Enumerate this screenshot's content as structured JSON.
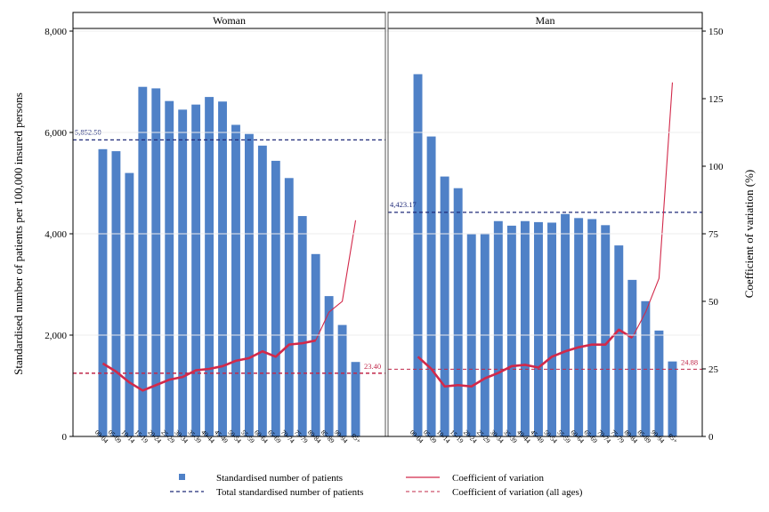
{
  "chart_data": {
    "type": "bar",
    "y_left_label": "Standardised number of patients per 100,000 insured persons",
    "y_right_label": "Coefficient of variation (%)",
    "y_left_lim": [
      0,
      8000
    ],
    "y_left_ticks": [
      "0",
      "2,000",
      "4,000",
      "6,000",
      "8,000"
    ],
    "y_left_tick_values": [
      0,
      2000,
      4000,
      6000,
      8000
    ],
    "y_right_lim": [
      0,
      150
    ],
    "y_right_ticks": [
      "0",
      "25",
      "50",
      "75",
      "100",
      "125",
      "150"
    ],
    "y_right_tick_values": [
      0,
      25,
      50,
      75,
      100,
      125,
      150
    ],
    "categories": [
      "00-04",
      "05-09",
      "10-14",
      "15-19",
      "20-24",
      "25-29",
      "30-34",
      "35-39",
      "40-44",
      "45-49",
      "50-54",
      "55-59",
      "60-64",
      "65-69",
      "70-74",
      "75-79",
      "80-84",
      "85-89",
      "90-94",
      "95+"
    ],
    "panels": [
      {
        "title": "Woman",
        "bars": [
          5670,
          5630,
          5200,
          6900,
          6870,
          6620,
          6450,
          6550,
          6700,
          6610,
          6150,
          5970,
          5740,
          5440,
          5100,
          4350,
          3600,
          2770,
          2200,
          1470
        ],
        "cv": [
          27,
          24,
          20,
          17,
          19,
          21,
          22,
          24.5,
          25,
          26,
          28,
          29,
          31.5,
          29.5,
          34,
          34.5,
          35.5,
          46,
          50,
          80
        ],
        "total": 5852.5,
        "total_label": "5,852.50",
        "cv_all": 23.4,
        "cv_all_label": "23.40"
      },
      {
        "title": "Man",
        "bars": [
          7150,
          5920,
          5130,
          4900,
          3990,
          4010,
          4250,
          4160,
          4250,
          4230,
          4220,
          4390,
          4310,
          4290,
          4170,
          3770,
          3090,
          2670,
          2090,
          1480
        ],
        "cv": [
          29.5,
          25,
          18.5,
          19,
          18.5,
          21.5,
          23.5,
          26,
          26.5,
          25.5,
          29.5,
          31.5,
          33,
          34,
          34,
          39.5,
          36.5,
          46,
          58.5,
          131
        ],
        "total": 4423.17,
        "total_label": "4,423.17",
        "cv_all": 24.88,
        "cv_all_label": "24.88"
      }
    ],
    "legend": [
      {
        "key": "bars",
        "label": "Standardised number of patients"
      },
      {
        "key": "cv",
        "label": "Coefficient of variation"
      },
      {
        "key": "total",
        "label": "Total standardised number of patients"
      },
      {
        "key": "cv_all",
        "label": "Coefficient of variation (all ages)"
      }
    ],
    "colors": {
      "bar": "#4F81C7",
      "cv_line": "#D2294A",
      "total_line": "#1F2A78",
      "cv_all_line": "#C0284A"
    }
  }
}
